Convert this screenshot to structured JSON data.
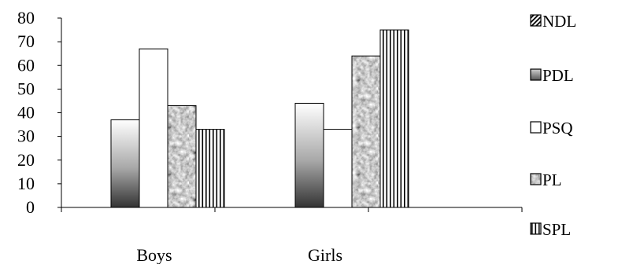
{
  "chart_data": {
    "type": "bar",
    "categories": [
      "Boys",
      "Girls"
    ],
    "series": [
      {
        "name": "NDL",
        "values": [
          null,
          null
        ],
        "pattern": "diagonal-hatch"
      },
      {
        "name": "PDL",
        "values": [
          37,
          44
        ],
        "pattern": "vertical-gradient-gray"
      },
      {
        "name": "PSQ",
        "values": [
          67,
          33
        ],
        "pattern": "white"
      },
      {
        "name": "PL",
        "values": [
          43,
          64
        ],
        "pattern": "mottled-gray"
      },
      {
        "name": "SPL",
        "values": [
          33,
          75
        ],
        "pattern": "vertical-stripes"
      }
    ],
    "y_ticks": [
      "0",
      "10",
      "20",
      "30",
      "40",
      "50",
      "60",
      "70",
      "80"
    ],
    "ylim": [
      0,
      80
    ],
    "grid": false,
    "legend_position": "right"
  }
}
